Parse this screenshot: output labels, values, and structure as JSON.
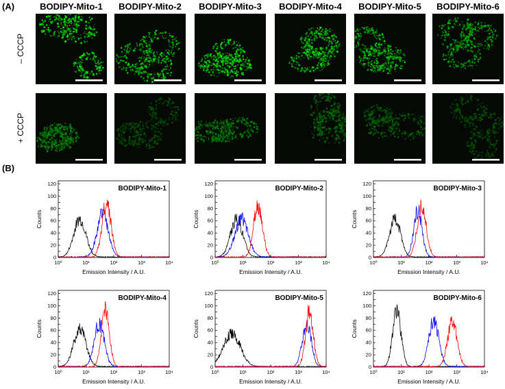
{
  "panel_a": {
    "label": "(A)",
    "columns": [
      "BODIPY-Mito-1",
      "BODIPY-Mito-2",
      "BODIPY-Mito-3",
      "BODIPY-Mito-4",
      "BODIPY-Mito-5",
      "BODIPY-Mito-6"
    ],
    "rows": [
      "– CCCP",
      "+ CCCP"
    ],
    "green_brightness": {
      "minus_cccp": [
        0.95,
        0.8,
        0.95,
        0.85,
        0.8,
        0.65
      ],
      "plus_cccp": [
        0.45,
        0.15,
        0.4,
        0.3,
        0.25,
        0.15
      ]
    }
  },
  "panel_b": {
    "label": "(B)"
  },
  "chart_data": [
    {
      "type": "line",
      "title": "BODIPY-Mito-1",
      "xlabel": "Emission Intensity / A.U.",
      "ylabel": "Counts",
      "xscale": "log",
      "xlim": [
        1,
        10000
      ],
      "ylim": [
        0,
        125
      ],
      "yticks": [
        0,
        10,
        20,
        30,
        40,
        50,
        60,
        70,
        80,
        90,
        100,
        110,
        120
      ],
      "xticks": [
        "10⁰",
        "10¹",
        "10²",
        "10³",
        "10⁴"
      ],
      "series": [
        {
          "color": "#000000",
          "peak_x": 6,
          "peak_y": 62,
          "width": 0.22
        },
        {
          "color": "#0000ff",
          "peak_x": 40,
          "peak_y": 72,
          "width": 0.2
        },
        {
          "color": "#ff0000",
          "peak_x": 55,
          "peak_y": 90,
          "width": 0.16
        }
      ]
    },
    {
      "type": "line",
      "title": "BODIPY-Mito-2",
      "xlabel": "Emission Intensity / A.U.",
      "ylabel": "Counts",
      "xscale": "log",
      "xlim": [
        1,
        10000
      ],
      "ylim": [
        0,
        125
      ],
      "yticks": [
        0,
        10,
        20,
        30,
        40,
        50,
        60,
        70,
        80,
        90,
        100,
        110,
        120
      ],
      "xticks": [
        "10⁰",
        "10¹",
        "10²",
        "10³",
        "10⁴"
      ],
      "series": [
        {
          "color": "#000000",
          "peak_x": 6,
          "peak_y": 62,
          "width": 0.22
        },
        {
          "color": "#0000ff",
          "peak_x": 9,
          "peak_y": 62,
          "width": 0.24
        },
        {
          "color": "#ff0000",
          "peak_x": 35,
          "peak_y": 85,
          "width": 0.16
        }
      ]
    },
    {
      "type": "line",
      "title": "BODIPY-Mito-3",
      "xlabel": "Emission Intensity / A.U.",
      "ylabel": "Counts",
      "xscale": "log",
      "xlim": [
        1,
        10000
      ],
      "ylim": [
        0,
        125
      ],
      "yticks": [
        0,
        10,
        20,
        30,
        40,
        50,
        60,
        70,
        80,
        90,
        100,
        110,
        120
      ],
      "xticks": [
        "10⁰",
        "10¹",
        "10²",
        "10³",
        "10⁴"
      ],
      "series": [
        {
          "color": "#000000",
          "peak_x": 6,
          "peak_y": 62,
          "width": 0.2
        },
        {
          "color": "#0000ff",
          "peak_x": 40,
          "peak_y": 75,
          "width": 0.15
        },
        {
          "color": "#ff0000",
          "peak_x": 55,
          "peak_y": 85,
          "width": 0.16
        }
      ]
    },
    {
      "type": "line",
      "title": "BODIPY-Mito-4",
      "xlabel": "Emission Intensity / A.U.",
      "ylabel": "Counts",
      "xscale": "log",
      "xlim": [
        1,
        10000
      ],
      "ylim": [
        0,
        125
      ],
      "yticks": [
        0,
        10,
        20,
        30,
        40,
        50,
        60,
        70,
        80,
        90,
        100,
        110,
        120
      ],
      "xticks": [
        "10⁰",
        "10¹",
        "10²",
        "10³",
        "10⁴"
      ],
      "series": [
        {
          "color": "#000000",
          "peak_x": 6,
          "peak_y": 62,
          "width": 0.22
        },
        {
          "color": "#0000ff",
          "peak_x": 30,
          "peak_y": 70,
          "width": 0.18
        },
        {
          "color": "#ff0000",
          "peak_x": 50,
          "peak_y": 95,
          "width": 0.14
        }
      ]
    },
    {
      "type": "line",
      "title": "BODIPY-Mito-5",
      "xlabel": "Emission Intensity / A.U.",
      "ylabel": "Counts",
      "xscale": "log",
      "xlim": [
        1,
        10000
      ],
      "ylim": [
        0,
        125
      ],
      "yticks": [
        0,
        10,
        20,
        30,
        40,
        50,
        60,
        70,
        80,
        90,
        100,
        110,
        120
      ],
      "xticks": [
        "10⁰",
        "10¹",
        "10²",
        "10³",
        "10⁴"
      ],
      "series": [
        {
          "color": "#000000",
          "peak_x": 4,
          "peak_y": 55,
          "width": 0.3
        },
        {
          "color": "#0000ff",
          "peak_x": 2000,
          "peak_y": 72,
          "width": 0.16
        },
        {
          "color": "#ff0000",
          "peak_x": 2500,
          "peak_y": 90,
          "width": 0.14
        }
      ]
    },
    {
      "type": "line",
      "title": "BODIPY-Mito-6",
      "xlabel": "Emission Intensity / A.U.",
      "ylabel": "Counts",
      "xscale": "log",
      "xlim": [
        1,
        10000
      ],
      "ylim": [
        0,
        125
      ],
      "yticks": [
        0,
        10,
        20,
        30,
        40,
        50,
        60,
        70,
        80,
        90,
        100,
        110,
        120
      ],
      "xticks": [
        "10⁰",
        "10¹",
        "10²",
        "10³",
        "10⁴"
      ],
      "series": [
        {
          "color": "#000000",
          "peak_x": 7,
          "peak_y": 92,
          "width": 0.15
        },
        {
          "color": "#0000ff",
          "peak_x": 150,
          "peak_y": 75,
          "width": 0.18
        },
        {
          "color": "#ff0000",
          "peak_x": 700,
          "peak_y": 75,
          "width": 0.17
        }
      ]
    }
  ]
}
